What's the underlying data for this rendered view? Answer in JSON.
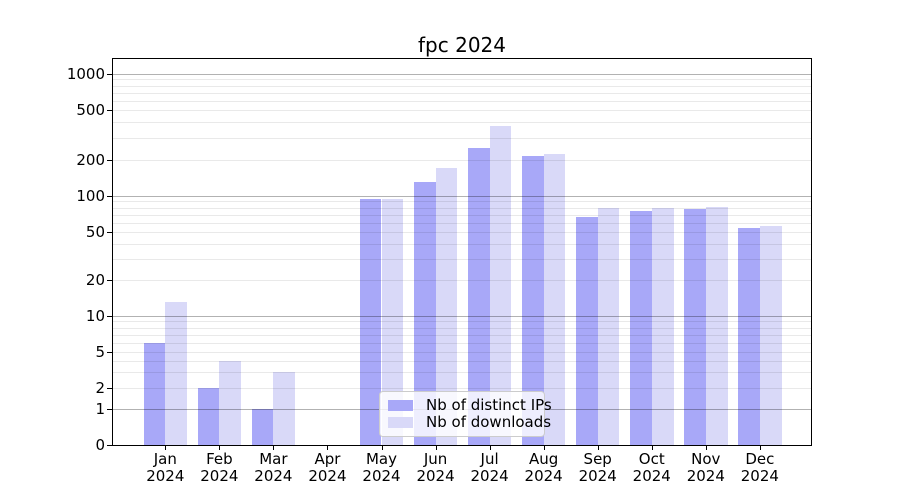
{
  "title": "fpc 2024",
  "chart_data": {
    "type": "bar",
    "title": "fpc 2024",
    "categories": [
      "Jan",
      "Feb",
      "Mar",
      "Apr",
      "May",
      "Jun",
      "Jul",
      "Aug",
      "Sep",
      "Oct",
      "Nov",
      "Dec"
    ],
    "category_year": "2024",
    "series": [
      {
        "name": "Nb of distinct IPs",
        "color": "#a8a8f8",
        "values": [
          6,
          2,
          1,
          0,
          95,
          130,
          250,
          215,
          67,
          75,
          78,
          54
        ]
      },
      {
        "name": "Nb of downloads",
        "color": "#d9d9f8",
        "values": [
          13,
          4,
          3,
          0,
          95,
          170,
          370,
          225,
          80,
          80,
          81,
          56
        ]
      }
    ],
    "yticks": [
      0,
      1,
      2,
      5,
      10,
      20,
      50,
      100,
      200,
      500,
      1000
    ],
    "ylim": [
      0,
      1300
    ],
    "yscale": "log-like with 0 baseline",
    "xlabel": "",
    "ylabel": "",
    "grid": "horizontal, minor light / major dark at powers of 10, drawn over bars",
    "legend_position": "lower center"
  },
  "colors": {
    "bar_distinct_ips": "#a8a8f8",
    "bar_downloads": "#d9d9f8",
    "grid_minor": "#ebebeb",
    "grid_major": "#b3b3b3",
    "axis": "#000000",
    "background": "#ffffff"
  }
}
